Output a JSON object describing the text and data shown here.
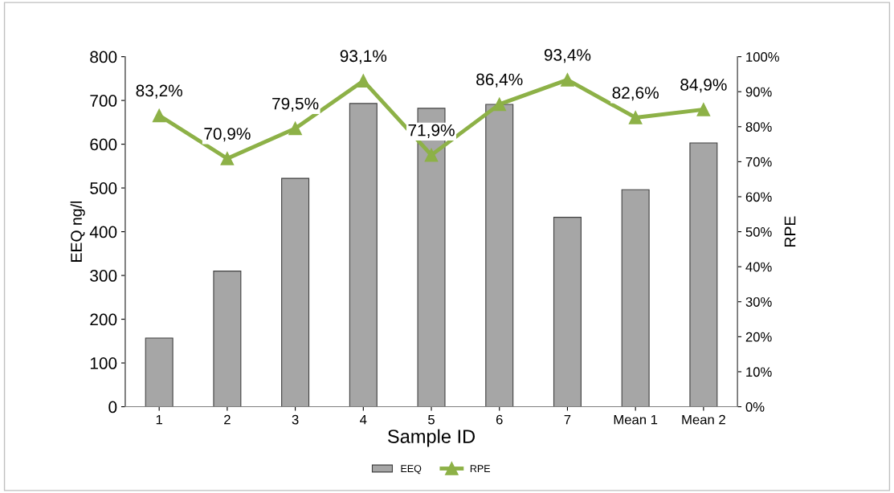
{
  "chart_data": {
    "type": "bar",
    "xlabel": "Sample ID",
    "ylabel": "EEQ ng/l",
    "y2label": "RPE",
    "categories": [
      "1",
      "2",
      "3",
      "4",
      "5",
      "6",
      "7",
      "Mean 1",
      "Mean 2"
    ],
    "series": [
      {
        "name": "EEQ",
        "color": "#a6a6a6",
        "values": [
          157,
          310,
          522,
          693,
          682,
          691,
          433,
          496,
          603
        ]
      },
      {
        "name": "RPE",
        "type": "line",
        "axis": "y2",
        "color": "#8db147",
        "marker": "triangle",
        "values": [
          83.2,
          70.9,
          79.5,
          93.1,
          71.9,
          86.4,
          93.4,
          82.6,
          84.9
        ],
        "value_labels": [
          "83,2%",
          "70,9%",
          "79,5%",
          "93,1%",
          "71,9%",
          "86,4%",
          "93,4%",
          "82,6%",
          "84,9%"
        ]
      }
    ],
    "ylim": [
      0,
      800
    ],
    "yticks": [
      0,
      100,
      200,
      300,
      400,
      500,
      600,
      700,
      800
    ],
    "y2lim": [
      0,
      100
    ],
    "y2ticks": [
      {
        "value": 0,
        "label": "0%"
      },
      {
        "value": 10,
        "label": "10%"
      },
      {
        "value": 20,
        "label": "20%"
      },
      {
        "value": 30,
        "label": "30%"
      },
      {
        "value": 40,
        "label": "40%"
      },
      {
        "value": 50,
        "label": "50%"
      },
      {
        "value": 60,
        "label": "60%"
      },
      {
        "value": 70,
        "label": "70%"
      },
      {
        "value": 80,
        "label": "80%"
      },
      {
        "value": 90,
        "label": "90%"
      },
      {
        "value": 100,
        "label": "100%"
      }
    ],
    "grid": false,
    "legend": "bottom"
  }
}
